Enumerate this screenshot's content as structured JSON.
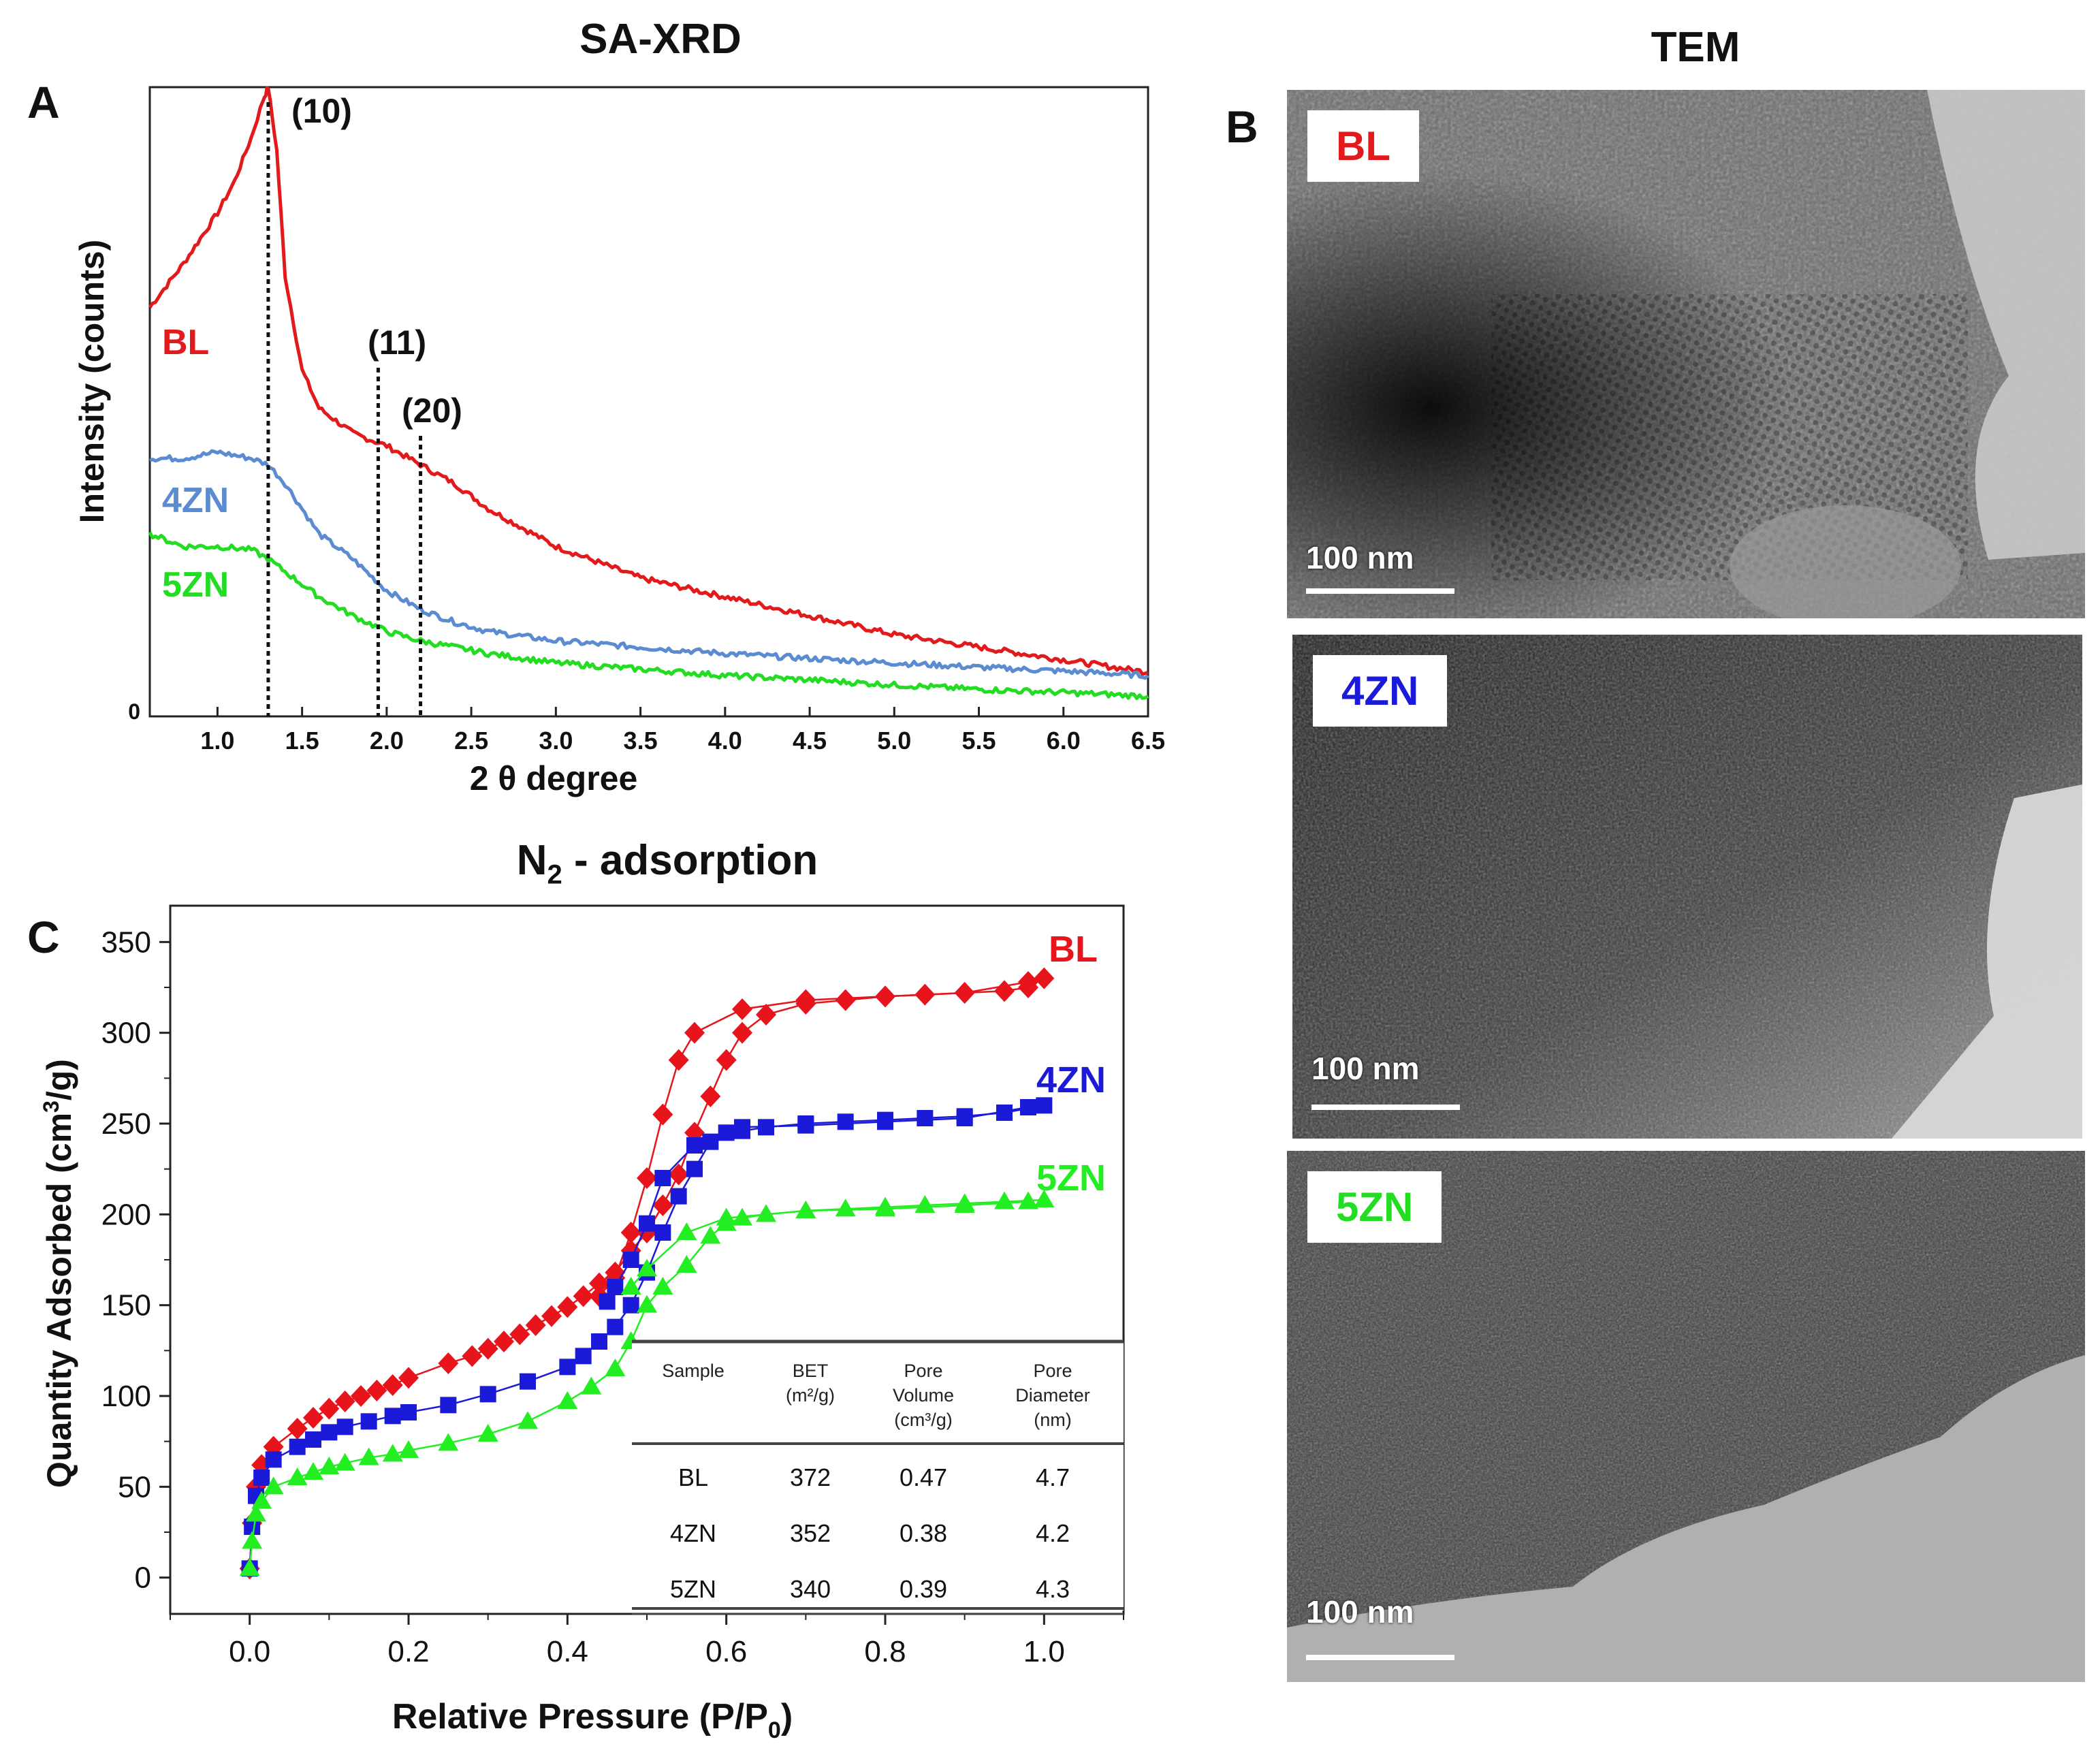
{
  "figure": {
    "xrd_title": "SA-XRD",
    "tem_title": "TEM",
    "ads_title": "N",
    "ads_title_sub": "2",
    "ads_title_rest": " - adsorption",
    "letters": {
      "a": "A",
      "b": "B",
      "c": "C"
    }
  },
  "chart_data": [
    {
      "type": "line",
      "panel": "A",
      "title": "SA-XRD",
      "xlabel": "2 θ degree",
      "ylabel": "Intensity (counts)",
      "xlim": [
        0.6,
        6.5
      ],
      "ylim": [
        0,
        100
      ],
      "x_ticks": [
        "1.0",
        "1.5",
        "2.0",
        "2.5",
        "3.0",
        "3.5",
        "4.0",
        "4.5",
        "5.0",
        "5.5",
        "6.0",
        "6.5"
      ],
      "y_tick_label": "0",
      "peaks": [
        {
          "label": "(10)",
          "x": 1.3
        },
        {
          "label": "(11)",
          "x": 1.95
        },
        {
          "label": "(20)",
          "x": 2.2
        }
      ],
      "series": [
        {
          "name": "BL",
          "color": "#e31a1c",
          "x": [
            0.6,
            0.8,
            1.0,
            1.1,
            1.2,
            1.27,
            1.3,
            1.35,
            1.4,
            1.5,
            1.6,
            1.8,
            2.0,
            2.2,
            2.4,
            2.6,
            3.0,
            3.5,
            4.0,
            4.5,
            5.0,
            5.5,
            6.0,
            6.5
          ],
          "y": [
            65,
            72,
            80,
            85,
            92,
            98,
            100,
            90,
            70,
            55,
            49,
            45,
            43,
            40,
            37,
            33,
            27,
            22,
            19,
            16,
            13,
            11,
            9,
            7
          ]
        },
        {
          "name": "4ZN",
          "color": "#5b8bd0",
          "x": [
            0.6,
            0.8,
            1.0,
            1.2,
            1.3,
            1.4,
            1.5,
            1.6,
            1.8,
            2.0,
            2.2,
            2.4,
            2.6,
            3.0,
            3.5,
            4.0,
            4.5,
            5.0,
            5.5,
            6.0,
            6.5
          ],
          "y": [
            41,
            41,
            42,
            41,
            40,
            37,
            33,
            29,
            25,
            20,
            17,
            15,
            13.5,
            12,
            11,
            10,
            9.2,
            8.5,
            7.8,
            7.2,
            6.5
          ]
        },
        {
          "name": "5ZN",
          "color": "#22dd22",
          "x": [
            0.6,
            0.8,
            1.0,
            1.2,
            1.3,
            1.4,
            1.5,
            1.6,
            1.8,
            2.0,
            2.2,
            2.4,
            2.6,
            3.0,
            3.5,
            4.0,
            4.5,
            5.0,
            5.5,
            6.0,
            6.5
          ],
          "y": [
            29,
            27,
            27,
            26.5,
            25,
            23,
            21,
            19,
            16,
            13.5,
            12,
            11,
            10,
            8.5,
            7.5,
            6.5,
            5.8,
            5,
            4.3,
            3.8,
            3.2
          ]
        }
      ]
    },
    {
      "type": "scatter",
      "panel": "C",
      "title": "N2 - adsorption",
      "xlabel": "Relative Pressure (P/P",
      "xlabel_sub": "0",
      "xlabel_end": ")",
      "ylabel": "Quantity Adsorbed (cm",
      "ylabel_sup": "3",
      "ylabel_end": "/g)",
      "xlim": [
        -0.1,
        1.1
      ],
      "ylim": [
        -20,
        370
      ],
      "x_ticks": [
        "0.0",
        "0.2",
        "0.4",
        "0.6",
        "0.8",
        "1.0"
      ],
      "y_ticks": [
        "0",
        "50",
        "100",
        "150",
        "200",
        "250",
        "300",
        "350"
      ],
      "series": [
        {
          "name": "BL",
          "color": "#e8141c",
          "marker": "diamond",
          "adsorption": {
            "x": [
              0.0,
              0.003,
              0.008,
              0.015,
              0.03,
              0.06,
              0.08,
              0.1,
              0.12,
              0.14,
              0.16,
              0.18,
              0.2,
              0.25,
              0.28,
              0.3,
              0.32,
              0.34,
              0.36,
              0.38,
              0.4,
              0.42,
              0.44,
              0.46,
              0.48,
              0.5,
              0.52,
              0.54,
              0.56,
              0.58,
              0.6,
              0.62,
              0.65,
              0.7,
              0.75,
              0.8,
              0.85,
              0.9,
              0.95,
              0.98,
              1.0
            ],
            "y": [
              5,
              30,
              50,
              62,
              72,
              82,
              88,
              93,
              97,
              100,
              103,
              106,
              110,
              118,
              122,
              126,
              130,
              134,
              139,
              144,
              149,
              155,
              162,
              168,
              180,
              190,
              205,
              222,
              245,
              265,
              285,
              300,
              310,
              316,
              318,
              320,
              321,
              322,
              323,
              325,
              330
            ]
          },
          "desorption": {
            "x": [
              0.98,
              0.9,
              0.8,
              0.7,
              0.62,
              0.56,
              0.54,
              0.52,
              0.5,
              0.48,
              0.46,
              0.44
            ],
            "y": [
              328,
              322,
              320,
              318,
              313,
              300,
              285,
              255,
              220,
              190,
              165,
              155
            ]
          }
        },
        {
          "name": "4ZN",
          "color": "#1a1ad8",
          "marker": "square",
          "adsorption": {
            "x": [
              0.0,
              0.003,
              0.008,
              0.015,
              0.03,
              0.06,
              0.08,
              0.1,
              0.12,
              0.15,
              0.18,
              0.2,
              0.25,
              0.3,
              0.35,
              0.4,
              0.42,
              0.44,
              0.46,
              0.48,
              0.5,
              0.52,
              0.54,
              0.56,
              0.58,
              0.6,
              0.62,
              0.65,
              0.7,
              0.75,
              0.8,
              0.85,
              0.9,
              0.95,
              1.0
            ],
            "y": [
              5,
              28,
              45,
              55,
              65,
              72,
              76,
              80,
              83,
              86,
              89,
              91,
              95,
              101,
              108,
              116,
              122,
              130,
              138,
              150,
              168,
              190,
              210,
              225,
              240,
              245,
              246,
              248,
              250,
              251,
              252,
              253,
              254,
              256,
              260
            ]
          },
          "desorption": {
            "x": [
              0.98,
              0.9,
              0.8,
              0.7,
              0.62,
              0.56,
              0.52,
              0.5,
              0.48,
              0.46,
              0.45
            ],
            "y": [
              259,
              253,
              251,
              249,
              248,
              238,
              220,
              195,
              175,
              160,
              152
            ]
          }
        },
        {
          "name": "5ZN",
          "color": "#22ee22",
          "marker": "triangle",
          "adsorption": {
            "x": [
              0.0,
              0.003,
              0.008,
              0.015,
              0.03,
              0.06,
              0.08,
              0.1,
              0.12,
              0.15,
              0.18,
              0.2,
              0.25,
              0.3,
              0.35,
              0.4,
              0.43,
              0.46,
              0.48,
              0.5,
              0.52,
              0.55,
              0.58,
              0.6,
              0.62,
              0.65,
              0.7,
              0.75,
              0.8,
              0.85,
              0.9,
              0.95,
              1.0
            ],
            "y": [
              5,
              20,
              35,
              42,
              50,
              55,
              58,
              61,
              63,
              66,
              68,
              70,
              74,
              79,
              86,
              97,
              105,
              115,
              130,
              150,
              160,
              172,
              188,
              195,
              198,
              200,
              202,
              203,
              204,
              205,
              206,
              207,
              208
            ]
          },
          "desorption": {
            "x": [
              0.98,
              0.9,
              0.8,
              0.7,
              0.6,
              0.55,
              0.5,
              0.48
            ],
            "y": [
              207,
              205,
              203,
              202,
              198,
              190,
              170,
              160
            ]
          }
        }
      ],
      "table": {
        "headers": [
          [
            "Sample"
          ],
          [
            "BET",
            "(m²/g)"
          ],
          [
            "Pore",
            "Volume",
            "(cm³/g)"
          ],
          [
            "Pore",
            "Diameter",
            "(nm)"
          ]
        ],
        "rows": [
          [
            "BL",
            "372",
            "0.47",
            "4.7"
          ],
          [
            "4ZN",
            "352",
            "0.38",
            "4.2"
          ],
          [
            "5ZN",
            "340",
            "0.39",
            "4.3"
          ]
        ]
      }
    }
  ],
  "tem": [
    {
      "label": "BL",
      "color": "#e31a1c",
      "scale": "100 nm"
    },
    {
      "label": "4ZN",
      "color": "#1a1ad8",
      "scale": "100 nm"
    },
    {
      "label": "5ZN",
      "color": "#22dd22",
      "scale": "100 nm"
    }
  ]
}
